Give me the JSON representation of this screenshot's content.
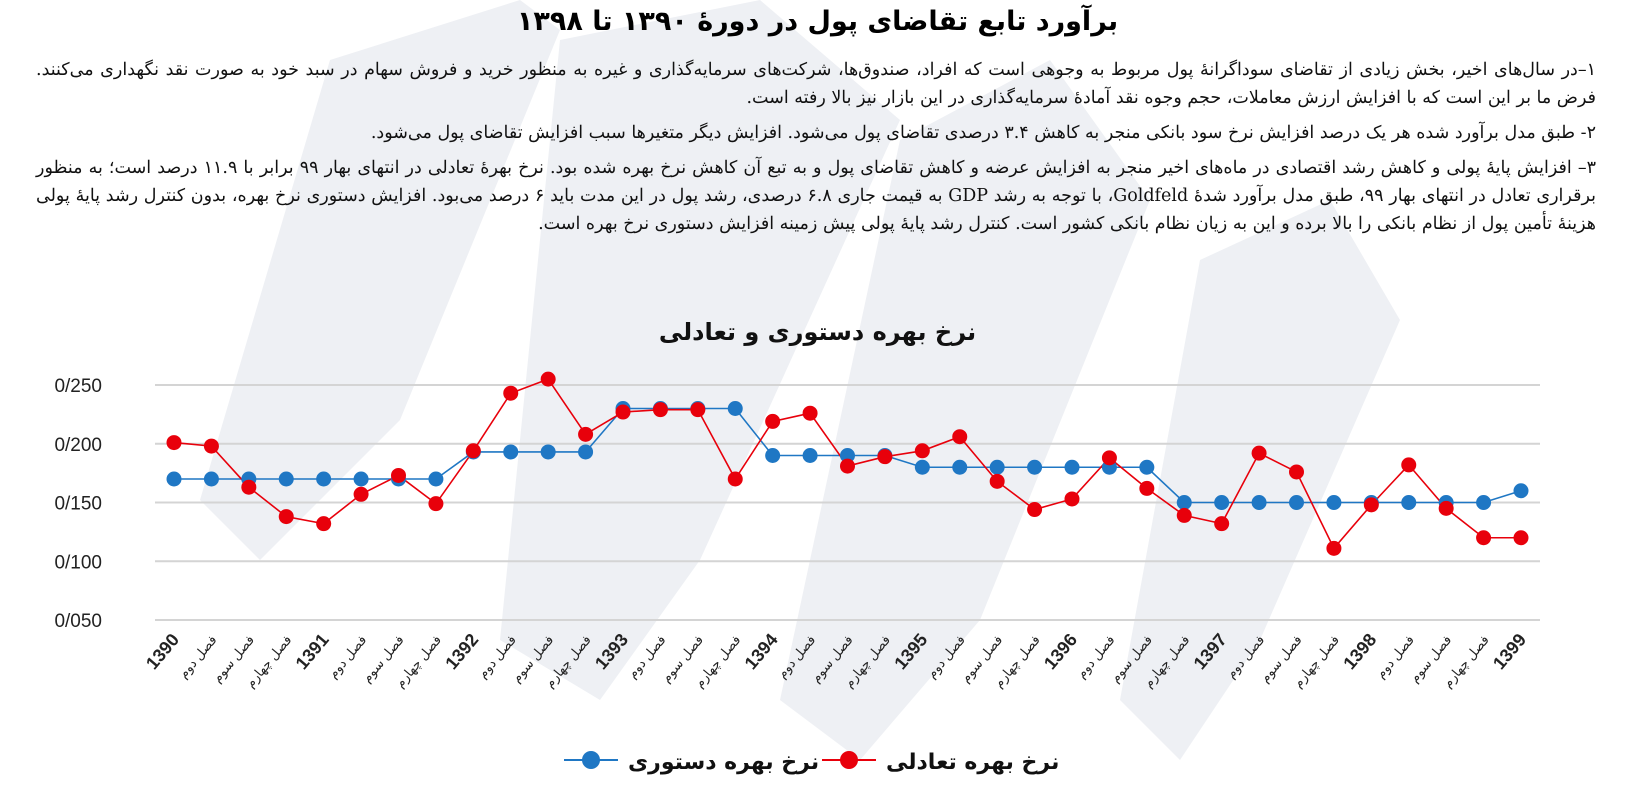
{
  "doc_title": "برآورد تابع تقاضای پول در دورۀ ۱۳۹۰ تا ۱۳۹۸",
  "notes": [
    "۱–در سال‌های اخیر، بخش زیادی از تقاضای سوداگرانۀ پول مربوط به وجوهی است که افراد، صندوق‌ها، شرکت‌های سرمایه‌گذاری و غیره به منظور خرید و فروش سهام در سبد خود به صورت نقد نگهداری می‌کنند. فرض ما بر این است که با افزایش ارزش معاملات، حجم وجوه نقد آمادۀ سرمایه‌گذاری در این بازار نیز بالا رفته است.",
    "۲- طبق مدل برآورد شده هر یک درصد افزایش نرخ سود بانکی منجر به کاهش ۳.۴ درصدی تقاضای پول می‌شود. افزایش دیگر متغیرها سبب افزایش تقاضای پول می‌شود.",
    "۳– افزایش پایۀ پولی و کاهش رشد اقتصادی در ماه‌های اخیر منجر به افزایش عرضه و کاهش تقاضای پول و به تبع آن کاهش نرخ بهره شده بود. نرخ بهرۀ تعادلی در انتهای بهار ۹۹ برابر با ۱۱.۹ درصد است؛ به منظور برقراری تعادل در انتهای بهار ۹۹، طبق مدل برآورد شدۀ Goldfeld، با توجه به رشد GDP به قیمت جاری ۶.۸ درصدی، رشد پول در این مدت باید ۶ درصد می‌بود. افزایش دستوری نرخ بهره، بدون کنترل رشد پایۀ پولی هزینۀ تأمین پول از نظام بانکی را بالا برده و این به زیان نظام بانکی کشور است. کنترل رشد پایۀ پولی پیش زمینه افزایش دستوری نرخ بهره است."
  ],
  "chart_data": {
    "type": "line",
    "title": "نرخ بهره دستوری و تعادلی",
    "categories": [
      "1390",
      "فصل دوم",
      "فصل سوم",
      "فصل چهارم",
      "1391",
      "فصل دوم",
      "فصل سوم",
      "فصل چهارم",
      "1392",
      "فصل دوم",
      "فصل سوم",
      "فصل چهارم",
      "1393",
      "فصل دوم",
      "فصل سوم",
      "فصل چهارم",
      "1394",
      "فصل دوم",
      "فصل سوم",
      "فصل چهارم",
      "1395",
      "فصل دوم",
      "فصل سوم",
      "فصل چهارم",
      "1396",
      "فصل دوم",
      "فصل سوم",
      "فصل چهارم",
      "1397",
      "فصل دوم",
      "فصل سوم",
      "فصل چهارم",
      "1398",
      "فصل دوم",
      "فصل سوم",
      "فصل چهارم",
      "1399"
    ],
    "bold_category_indices": [
      0,
      4,
      8,
      12,
      16,
      20,
      24,
      28,
      32,
      36
    ],
    "series": [
      {
        "name": "نرخ بهره دستوری",
        "color": "#1f77c4",
        "values": [
          0.17,
          0.17,
          0.17,
          0.17,
          0.17,
          0.17,
          0.17,
          0.17,
          0.193,
          0.193,
          0.193,
          0.193,
          0.23,
          0.23,
          0.23,
          0.23,
          0.19,
          0.19,
          0.19,
          0.19,
          0.18,
          0.18,
          0.18,
          0.18,
          0.18,
          0.18,
          0.18,
          0.15,
          0.15,
          0.15,
          0.15,
          0.15,
          0.15,
          0.15,
          0.15,
          0.15,
          0.16
        ]
      },
      {
        "name": "نرخ بهره تعادلی",
        "color": "#e8000b",
        "values": [
          0.201,
          0.198,
          0.163,
          0.138,
          0.132,
          0.157,
          0.173,
          0.149,
          0.194,
          0.243,
          0.255,
          0.208,
          0.227,
          0.229,
          0.229,
          0.17,
          0.219,
          0.226,
          0.181,
          0.189,
          0.194,
          0.206,
          0.168,
          0.144,
          0.153,
          0.188,
          0.162,
          0.139,
          0.132,
          0.192,
          0.176,
          0.111,
          0.148,
          0.182,
          0.145,
          0.12,
          0.12
        ]
      }
    ],
    "y_ticks": [
      "0/050",
      "0/100",
      "0/150",
      "0/200",
      "0/250"
    ],
    "ylim": [
      0.05,
      0.25
    ],
    "grid": true,
    "legend_position": "bottom"
  }
}
